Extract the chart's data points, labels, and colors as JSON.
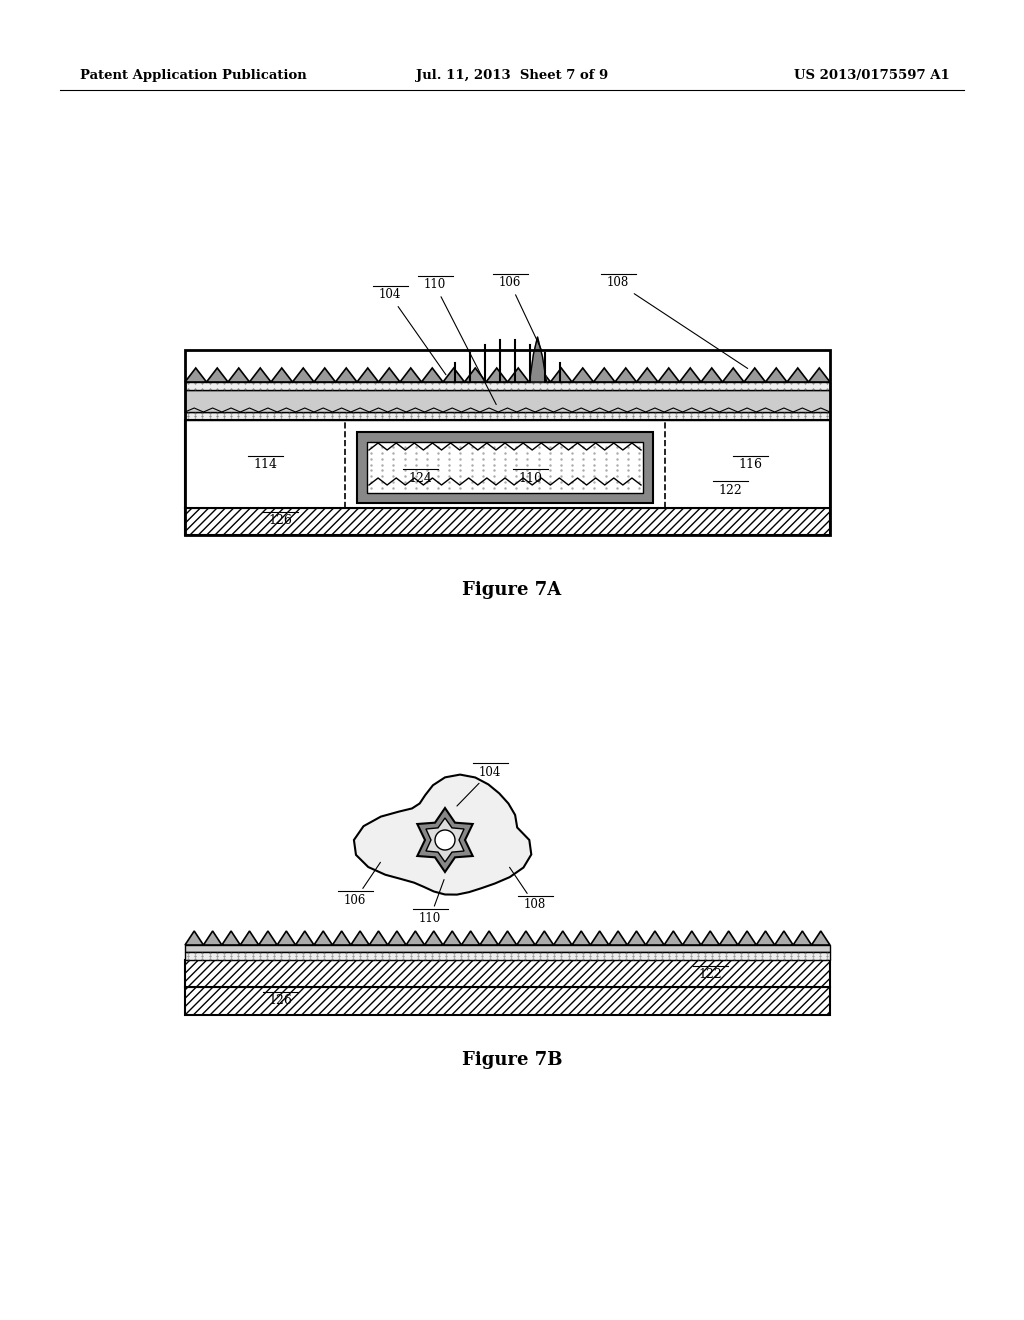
{
  "header_left": "Patent Application Publication",
  "header_mid": "Jul. 11, 2013  Sheet 7 of 9",
  "header_right": "US 2013/0175597 A1",
  "fig7a_caption": "Figure 7A",
  "fig7b_caption": "Figure 7B",
  "bg_color": "#ffffff"
}
